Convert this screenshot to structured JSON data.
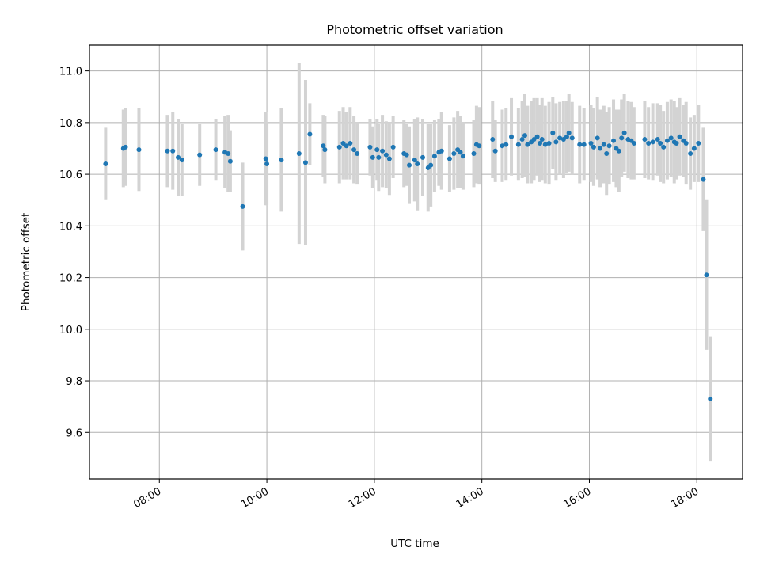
{
  "chart_data": {
    "type": "scatter",
    "title": "Photometric offset variation",
    "xlabel": "UTC time",
    "ylabel": "Photometric offset",
    "xlim": [
      6.7,
      18.85
    ],
    "ylim": [
      9.42,
      11.1
    ],
    "grid": true,
    "x_ticks": [
      {
        "value": 8,
        "label": "08:00"
      },
      {
        "value": 10,
        "label": "10:00"
      },
      {
        "value": 12,
        "label": "12:00"
      },
      {
        "value": 14,
        "label": "14:00"
      },
      {
        "value": 16,
        "label": "16:00"
      },
      {
        "value": 18,
        "label": "18:00"
      }
    ],
    "y_ticks": [
      {
        "value": 9.6,
        "label": "9.6"
      },
      {
        "value": 9.8,
        "label": "9.8"
      },
      {
        "value": 10.0,
        "label": "10.0"
      },
      {
        "value": 10.2,
        "label": "10.2"
      },
      {
        "value": 10.4,
        "label": "10.4"
      },
      {
        "value": 10.6,
        "label": "10.6"
      },
      {
        "value": 10.8,
        "label": "10.8"
      },
      {
        "value": 11.0,
        "label": "11.0"
      }
    ],
    "series": [
      {
        "marker_color": "#1f77b4",
        "errorbar_color": "#d3d3d3",
        "x": [
          7.0,
          7.33,
          7.37,
          7.62,
          8.15,
          8.25,
          8.35,
          8.42,
          8.75,
          9.05,
          9.22,
          9.28,
          9.32,
          9.55,
          9.98,
          10.0,
          10.27,
          10.6,
          10.72,
          10.8,
          11.05,
          11.08,
          11.35,
          11.42,
          11.48,
          11.55,
          11.62,
          11.68,
          11.92,
          11.97,
          12.05,
          12.08,
          12.15,
          12.22,
          12.28,
          12.35,
          12.55,
          12.6,
          12.65,
          12.75,
          12.8,
          12.9,
          13.0,
          13.05,
          13.12,
          13.2,
          13.25,
          13.4,
          13.48,
          13.55,
          13.6,
          13.65,
          13.85,
          13.9,
          13.95,
          14.2,
          14.25,
          14.38,
          14.45,
          14.55,
          14.68,
          14.75,
          14.8,
          14.85,
          14.92,
          14.97,
          15.03,
          15.08,
          15.12,
          15.18,
          15.25,
          15.32,
          15.38,
          15.45,
          15.52,
          15.58,
          15.62,
          15.68,
          15.82,
          15.9,
          16.03,
          16.08,
          16.15,
          16.2,
          16.27,
          16.32,
          16.37,
          16.45,
          16.5,
          16.55,
          16.6,
          16.65,
          16.72,
          16.78,
          16.83,
          17.03,
          17.1,
          17.18,
          17.27,
          17.32,
          17.38,
          17.45,
          17.52,
          17.58,
          17.62,
          17.68,
          17.75,
          17.8,
          17.88,
          17.95,
          18.03,
          18.12,
          18.18,
          18.25
        ],
        "y": [
          10.64,
          10.7,
          10.705,
          10.695,
          10.69,
          10.69,
          10.665,
          10.655,
          10.675,
          10.695,
          10.685,
          10.68,
          10.65,
          10.475,
          10.66,
          10.64,
          10.655,
          10.68,
          10.645,
          10.755,
          10.71,
          10.695,
          10.705,
          10.72,
          10.71,
          10.72,
          10.695,
          10.68,
          10.705,
          10.665,
          10.695,
          10.665,
          10.69,
          10.675,
          10.66,
          10.705,
          10.68,
          10.675,
          10.635,
          10.655,
          10.64,
          10.665,
          10.625,
          10.635,
          10.67,
          10.685,
          10.69,
          10.66,
          10.68,
          10.695,
          10.685,
          10.67,
          10.68,
          10.715,
          10.71,
          10.735,
          10.69,
          10.71,
          10.715,
          10.745,
          10.715,
          10.735,
          10.75,
          10.715,
          10.725,
          10.735,
          10.745,
          10.72,
          10.735,
          10.715,
          10.72,
          10.76,
          10.725,
          10.74,
          10.735,
          10.745,
          10.76,
          10.74,
          10.715,
          10.715,
          10.72,
          10.705,
          10.74,
          10.7,
          10.715,
          10.68,
          10.71,
          10.73,
          10.7,
          10.69,
          10.74,
          10.76,
          10.735,
          10.73,
          10.72,
          10.735,
          10.72,
          10.725,
          10.735,
          10.72,
          10.705,
          10.73,
          10.74,
          10.725,
          10.72,
          10.745,
          10.73,
          10.72,
          10.68,
          10.7,
          10.72,
          10.58,
          10.21,
          9.73
        ],
        "err": [
          0.14,
          0.15,
          0.15,
          0.16,
          0.14,
          0.15,
          0.15,
          0.14,
          0.12,
          0.12,
          0.14,
          0.15,
          0.12,
          0.17,
          0.18,
          0.16,
          0.2,
          0.35,
          0.32,
          0.12,
          0.12,
          0.13,
          0.14,
          0.14,
          0.13,
          0.14,
          0.13,
          0.12,
          0.11,
          0.12,
          0.12,
          0.13,
          0.14,
          0.13,
          0.14,
          0.12,
          0.13,
          0.12,
          0.15,
          0.16,
          0.18,
          0.15,
          0.17,
          0.16,
          0.14,
          0.13,
          0.15,
          0.13,
          0.14,
          0.15,
          0.14,
          0.13,
          0.13,
          0.15,
          0.15,
          0.15,
          0.12,
          0.14,
          0.14,
          0.15,
          0.14,
          0.15,
          0.16,
          0.15,
          0.16,
          0.16,
          0.15,
          0.15,
          0.16,
          0.15,
          0.16,
          0.14,
          0.15,
          0.14,
          0.15,
          0.14,
          0.15,
          0.14,
          0.15,
          0.14,
          0.15,
          0.15,
          0.16,
          0.15,
          0.15,
          0.16,
          0.15,
          0.16,
          0.15,
          0.16,
          0.15,
          0.15,
          0.15,
          0.15,
          0.14,
          0.15,
          0.14,
          0.15,
          0.14,
          0.15,
          0.14,
          0.15,
          0.15,
          0.16,
          0.14,
          0.15,
          0.14,
          0.16,
          0.14,
          0.13,
          0.15,
          0.2,
          0.29,
          0.24
        ]
      }
    ]
  }
}
